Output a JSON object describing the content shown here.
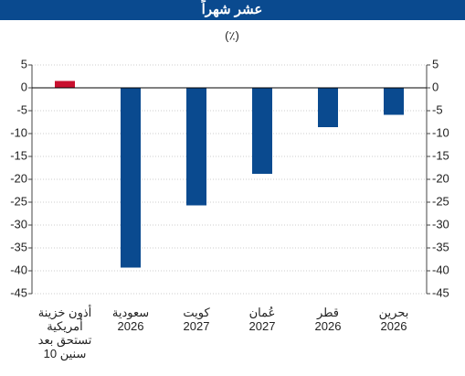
{
  "chart_data": {
    "type": "bar",
    "title": "عشر شهراً",
    "subtitle": "(٪)",
    "categories": [
      "أذون خزينة\nأمريكية\nتستحق بعد\n10 سنين",
      "سعودية\n2026",
      "كويت\n2027",
      "عُمان\n2027",
      "قطر\n2026",
      "بحرين\n2026"
    ],
    "values": [
      1.5,
      -39.3,
      -25.7,
      -18.8,
      -8.6,
      -5.9
    ],
    "colors": [
      "#c8102e",
      "#0a4a8f",
      "#0a4a8f",
      "#0a4a8f",
      "#0a4a8f",
      "#0a4a8f"
    ],
    "ylim": [
      -45,
      5
    ],
    "yticks": [
      5,
      0,
      -5,
      -10,
      -15,
      -20,
      -25,
      -30,
      -35,
      -40,
      -45
    ],
    "y2lim": [
      -45,
      5
    ],
    "y2ticks": [
      5,
      0,
      -5,
      -10,
      -15,
      -20,
      -25,
      -30,
      -35,
      -40,
      -45
    ],
    "grid": true
  }
}
